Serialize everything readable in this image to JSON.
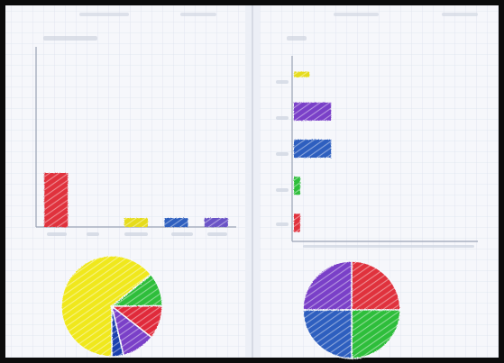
{
  "page": {
    "background": "#0c0c0c",
    "paper_color": "#f6f7fb",
    "grid_color": "#dde3ee"
  },
  "chart_data": [
    {
      "type": "bar",
      "title": "",
      "xlabel": "",
      "ylabel": "",
      "categories": [
        "",
        "",
        "",
        "",
        ""
      ],
      "values": [
        6,
        0,
        1,
        1,
        1
      ],
      "ylim": [
        0,
        20
      ],
      "colors": [
        "#e0303e",
        "#ffffff",
        "#e6dc1e",
        "#2f5fbf",
        "#6a52c6"
      ],
      "grid": true
    },
    {
      "type": "pie",
      "title": "",
      "slices": [
        {
          "label": "",
          "value": 6,
          "color": "#f0e81e"
        },
        {
          "label": "",
          "value": 1,
          "color": "#2fbe3a"
        },
        {
          "label": "",
          "value": 1,
          "color": "#e02a3a"
        },
        {
          "label": "",
          "value": 1,
          "color": "#7a3fc8"
        },
        {
          "label": "",
          "value": 0.35,
          "color": "#1b3fae"
        }
      ]
    },
    {
      "type": "bar",
      "orientation": "horizontal",
      "title": "",
      "xlabel": "",
      "ylabel": "",
      "categories": [
        "",
        "",
        "",
        "",
        ""
      ],
      "values": [
        0.5,
        1.2,
        1.2,
        0.2,
        0.2
      ],
      "xlim": [
        0,
        6
      ],
      "colors": [
        "#e6dc1e",
        "#7a3fc8",
        "#2f5fbf",
        "#2fbe3a",
        "#e0303e"
      ],
      "grid": true
    },
    {
      "type": "pie",
      "title": "",
      "slices": [
        {
          "label": "",
          "value": 1,
          "color": "#e0303e"
        },
        {
          "label": "",
          "value": 1,
          "color": "#2fbe3a"
        },
        {
          "label": "",
          "value": 1,
          "color": "#2f5fbf"
        },
        {
          "label": "",
          "value": 1,
          "color": "#7a3fc8"
        }
      ]
    }
  ]
}
